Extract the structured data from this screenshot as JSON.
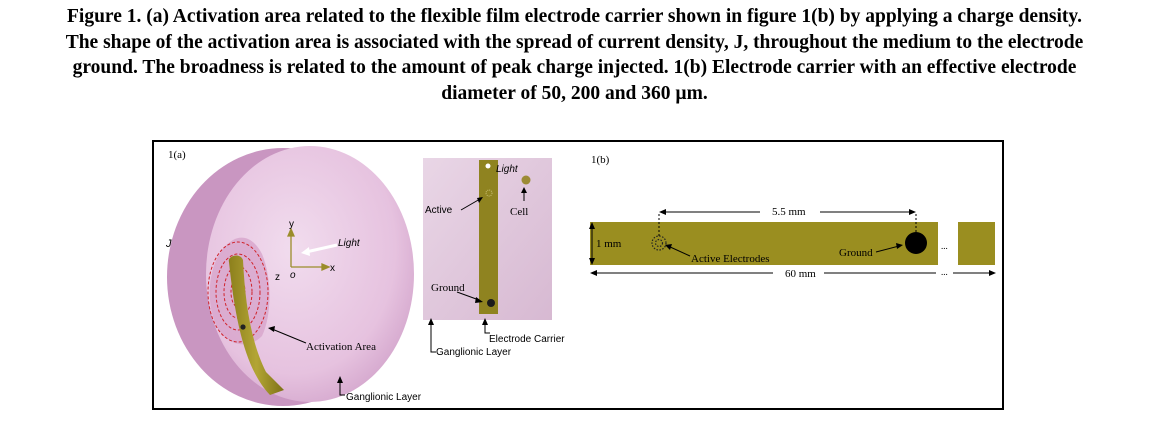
{
  "caption": {
    "line1": "Figure 1. (a) Activation area related to the flexible film electrode carrier shown in figure 1(b) by applying a charge density.",
    "line2": "The shape of the activation area is associated with the spread of current density, J, throughout the medium to the electrode",
    "line3": "ground. The broadness is related to the amount of peak charge injected. 1(b) Electrode carrier with an effective electrode",
    "line4": "diameter of 50, 200 and 360 µm."
  },
  "panel_a": {
    "label": "1(a)",
    "current_density": "J",
    "axis_y": "y",
    "axis_x": "x",
    "axis_z": "z",
    "origin": "o",
    "light": "Light",
    "activation_area": "Activation Area",
    "ganglionic_layer": "Ganglionic Layer"
  },
  "panel_inset": {
    "light": "Light",
    "active": "Active",
    "cell": "Cell",
    "ground": "Ground",
    "electrode_carrier": "Electrode Carrier",
    "ganglionic_layer": "Ganglionic Layer"
  },
  "panel_b": {
    "label": "1(b)",
    "width_dim": "1 mm",
    "length_top": "5.5 mm",
    "length_bottom": "60 mm",
    "active_electrodes": "Active Electrodes",
    "ground": "Ground",
    "ellipsis_top": "...",
    "ellipsis_bottom": "..."
  },
  "colors": {
    "sphere": "#e8c6e2",
    "carrier": "#a89a24",
    "inset_bg": "#ddc4d8"
  }
}
